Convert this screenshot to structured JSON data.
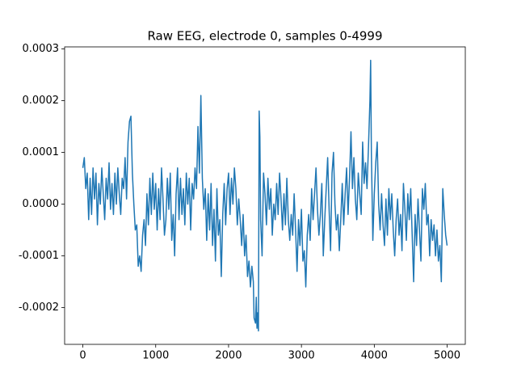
{
  "chart_data": {
    "type": "line",
    "title": "Raw EEG, electrode 0, samples 0-4999",
    "xlim": [
      -250,
      5249
    ],
    "ylim": [
      -0.000271,
      0.000304
    ],
    "xticks": [
      0,
      1000,
      2000,
      3000,
      4000,
      5000
    ],
    "yticks": [
      -0.0002,
      -0.0001,
      {
        "value": 0,
        "label": "0.0000"
      },
      0.0001,
      0.0002,
      0.0003
    ],
    "series": [
      {
        "color": "#1f77b4",
        "x": [
          0,
          20,
          40,
          60,
          80,
          100,
          120,
          140,
          160,
          180,
          200,
          220,
          240,
          260,
          280,
          300,
          320,
          340,
          360,
          380,
          400,
          420,
          440,
          460,
          480,
          500,
          520,
          540,
          560,
          580,
          600,
          620,
          640,
          660,
          680,
          700,
          720,
          740,
          760,
          780,
          800,
          820,
          840,
          860,
          880,
          900,
          920,
          940,
          960,
          980,
          1000,
          1020,
          1040,
          1060,
          1080,
          1100,
          1120,
          1140,
          1160,
          1180,
          1200,
          1220,
          1240,
          1260,
          1280,
          1300,
          1320,
          1340,
          1360,
          1380,
          1400,
          1420,
          1440,
          1460,
          1480,
          1500,
          1520,
          1540,
          1560,
          1580,
          1600,
          1620,
          1640,
          1660,
          1680,
          1700,
          1720,
          1740,
          1760,
          1780,
          1800,
          1820,
          1840,
          1860,
          1880,
          1900,
          1920,
          1940,
          1960,
          1980,
          2000,
          2020,
          2040,
          2060,
          2080,
          2100,
          2120,
          2140,
          2160,
          2180,
          2200,
          2220,
          2240,
          2260,
          2280,
          2300,
          2320,
          2340,
          2350,
          2370,
          2380,
          2390,
          2400,
          2410,
          2420,
          2430,
          2440,
          2460,
          2480,
          2500,
          2520,
          2540,
          2560,
          2580,
          2600,
          2620,
          2640,
          2660,
          2680,
          2700,
          2720,
          2740,
          2760,
          2780,
          2800,
          2820,
          2840,
          2860,
          2880,
          2900,
          2920,
          2940,
          2960,
          2980,
          3000,
          3020,
          3040,
          3060,
          3080,
          3100,
          3120,
          3140,
          3160,
          3180,
          3200,
          3220,
          3240,
          3260,
          3280,
          3300,
          3320,
          3340,
          3360,
          3380,
          3400,
          3420,
          3440,
          3460,
          3480,
          3500,
          3520,
          3540,
          3560,
          3580,
          3600,
          3620,
          3640,
          3660,
          3680,
          3700,
          3720,
          3740,
          3760,
          3780,
          3800,
          3820,
          3840,
          3860,
          3880,
          3900,
          3920,
          3940,
          3950,
          3960,
          3980,
          4000,
          4020,
          4040,
          4060,
          4080,
          4100,
          4120,
          4140,
          4160,
          4180,
          4200,
          4220,
          4240,
          4260,
          4280,
          4300,
          4320,
          4340,
          4360,
          4380,
          4400,
          4420,
          4440,
          4460,
          4480,
          4500,
          4520,
          4540,
          4560,
          4580,
          4600,
          4620,
          4640,
          4660,
          4680,
          4700,
          4720,
          4740,
          4760,
          4780,
          4800,
          4820,
          4840,
          4860,
          4880,
          4900,
          4920,
          4940,
          4960,
          4980,
          4999
        ],
        "values": [
          7e-05,
          9e-05,
          3e-05,
          6e-05,
          -3e-05,
          5e-05,
          -2e-05,
          7e-05,
          1e-05,
          6e-05,
          -4e-05,
          4e-05,
          0,
          7e-05,
          2e-05,
          -3e-05,
          5e-05,
          1e-05,
          8e-05,
          -1e-05,
          4e-05,
          -2e-05,
          6e-05,
          0,
          7e-05,
          2e-05,
          -2e-05,
          5e-05,
          3e-05,
          9e-05,
          1e-05,
          0.00012,
          0.00016,
          0.00017,
          6e-05,
          0,
          -5e-05,
          -4e-05,
          -0.00012,
          -0.0001,
          -0.00013,
          -6e-05,
          -3e-05,
          -8e-05,
          2e-05,
          -4e-05,
          5e-05,
          -2e-05,
          6e-05,
          -1e-05,
          4e-05,
          -5e-05,
          3e-05,
          -3e-05,
          7e-05,
          1e-05,
          -6e-05,
          -3e-05,
          5e-05,
          -1e-05,
          6e-05,
          -7e-05,
          -2e-05,
          -0.0001,
          2e-05,
          7e-05,
          -3e-05,
          5e-05,
          -2e-05,
          3e-05,
          -4e-05,
          6e-05,
          0,
          5e-05,
          -5e-05,
          4e-05,
          1e-05,
          7e-05,
          3e-05,
          0.00015,
          6e-05,
          0.00021,
          5e-05,
          -1e-05,
          3e-05,
          -7e-05,
          2e-05,
          -5e-05,
          4e-05,
          -8e-05,
          -1e-05,
          -0.00011,
          3e-05,
          -6e-05,
          -3e-05,
          -0.00014,
          -2e-05,
          4e-05,
          -4e-05,
          3e-05,
          6e-05,
          -2e-05,
          5e-05,
          0,
          7e-05,
          3e-05,
          -4e-05,
          1e-05,
          -3e-05,
          -8e-05,
          -2e-05,
          -0.0001,
          -6e-05,
          -0.00014,
          -0.00011,
          -0.00016,
          -0.00012,
          -0.00015,
          -0.00022,
          -0.00023,
          -0.00018,
          -0.00024,
          -0.00021,
          -0.000245,
          0.00018,
          0.00013,
          -3e-05,
          -0.0001,
          6e-05,
          2e-05,
          -4e-05,
          5e-05,
          -1e-05,
          3e-05,
          -6e-05,
          0,
          -3e-05,
          4e-05,
          -2e-05,
          6e-05,
          1e-05,
          -5e-05,
          2e-05,
          -4e-05,
          5e-05,
          -3e-05,
          -7e-05,
          -2e-05,
          -6e-05,
          2e-05,
          -5e-05,
          -0.00013,
          -3e-05,
          -8e-05,
          -1e-05,
          -0.00011,
          -9e-05,
          -0.00016,
          -6e-05,
          -2e-05,
          -7e-05,
          3e-05,
          -3e-05,
          2e-05,
          7e-05,
          -1e-05,
          -6e-05,
          -2e-05,
          4e-05,
          -0.0001,
          -3e-05,
          3e-05,
          9e-05,
          -1e-05,
          -9e-05,
          6e-05,
          0.0001,
          0,
          -5e-05,
          -2e-05,
          -9e-05,
          -3e-05,
          4e-05,
          -4e-05,
          2e-05,
          7e-05,
          -2e-05,
          5e-05,
          0.00014,
          3e-05,
          9e-05,
          1e-05,
          -3e-05,
          6e-05,
          2e-05,
          -2e-05,
          0.00012,
          4e-05,
          8e-05,
          3e-05,
          0.00011,
          0.0002,
          0.000278,
          0.0001,
          -7e-05,
          2e-05,
          8e-05,
          0.00012,
          0,
          -5e-05,
          2e-05,
          -4e-05,
          -8e-05,
          1e-05,
          -6e-05,
          3e-05,
          -3e-05,
          2e-05,
          -5e-05,
          -0.0001,
          -3e-05,
          1e-05,
          -6e-05,
          -2e-05,
          -9e-05,
          4e-05,
          -1e-05,
          -7e-05,
          2e-05,
          -3e-05,
          3e-05,
          -6e-05,
          -0.00015,
          -2e-05,
          -8e-05,
          1e-05,
          -5e-05,
          -0.00011,
          3e-05,
          -1e-05,
          4e-05,
          -4e-05,
          -2e-05,
          -0.0001,
          -3e-05,
          -7e-05,
          -4e-05,
          -0.0001,
          -5e-05,
          -0.00011,
          -8e-05,
          -0.00015,
          3e-05,
          -2e-05,
          -6e-05,
          -8e-05
        ]
      }
    ]
  }
}
